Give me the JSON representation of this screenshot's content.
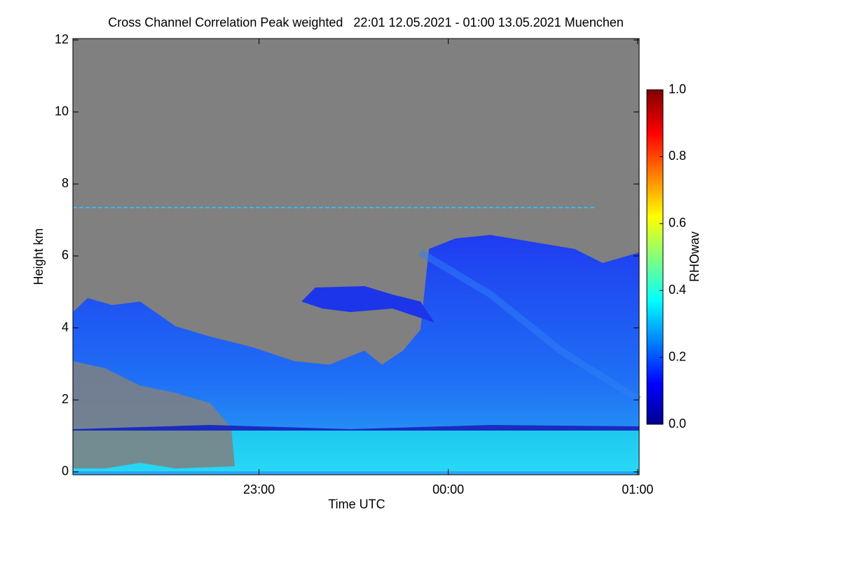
{
  "chart_data": {
    "type": "heatmap",
    "title": "Cross Channel Correlation Peak weighted   22:01 12.05.2021 - 01:00 13.05.2021 Muenchen",
    "x_label": "Time UTC",
    "y_label": "Height km",
    "xlim": [
      22.0167,
      25.0083
    ],
    "xticks": [
      {
        "value": 23,
        "label": "23:00"
      },
      {
        "value": 24,
        "label": "00:00"
      },
      {
        "value": 25,
        "label": "01:00"
      }
    ],
    "ylim": [
      -0.08,
      12.04
    ],
    "yticks": [
      0,
      2,
      4,
      6,
      8,
      10,
      12
    ],
    "colorbar": {
      "label": "RHOwav",
      "lim": [
        0,
        1
      ],
      "ticks": [
        {
          "value": 0,
          "label": "0.0"
        },
        {
          "value": 0.2,
          "label": "0.2"
        },
        {
          "value": 0.4,
          "label": "0.4"
        },
        {
          "value": 0.6,
          "label": "0.6"
        },
        {
          "value": 0.8,
          "label": "0.8"
        },
        {
          "value": 1,
          "label": "1.0"
        }
      ]
    }
  }
}
